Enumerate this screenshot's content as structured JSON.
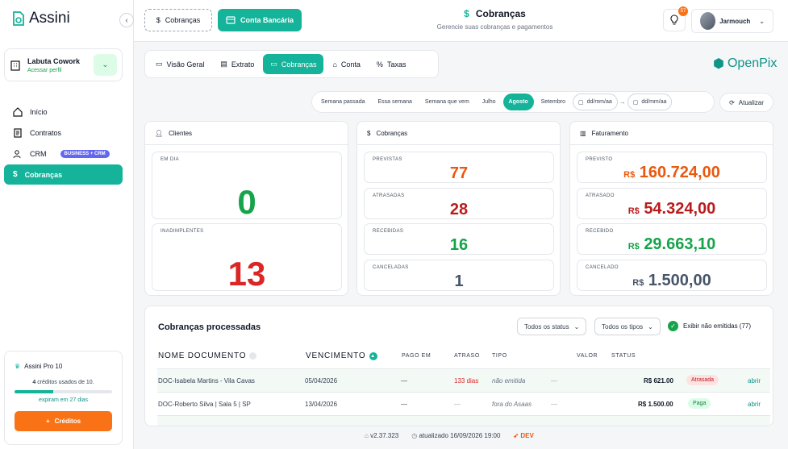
{
  "app": {
    "name": "Assini"
  },
  "org": {
    "name": "Labuta Cowork",
    "link": "Acessar perfil"
  },
  "nav": {
    "items": [
      {
        "label": "Início"
      },
      {
        "label": "Contratos"
      },
      {
        "label": "CRM",
        "badge": "BUSINESS + CRM"
      },
      {
        "label": "Cobranças"
      }
    ]
  },
  "plan": {
    "title": "Assini Pro 10",
    "used": "4",
    "usage_text": "créditos usados de 10.",
    "expires": "expiram em 27 dias",
    "button": "Créditos",
    "progress": 0.4
  },
  "topbar": {
    "btn_cobrancas": "Cobranças",
    "btn_conta": "Conta Bancária",
    "title": "Cobranças",
    "subtitle": "Gerencie suas cobranças e pagamentos",
    "notif_count": "57",
    "user": "Jarmouch"
  },
  "tabs": [
    {
      "label": "Visão Geral"
    },
    {
      "label": "Extrato"
    },
    {
      "label": "Cobranças"
    },
    {
      "label": "Conta"
    },
    {
      "label": "Taxas"
    }
  ],
  "brand": {
    "openpix": "OpenPix"
  },
  "filters": {
    "chips": [
      "Semana passada",
      "Essa semana",
      "Semana que vem",
      "Julho",
      "Agosto",
      "Setembro"
    ],
    "active": "Agosto",
    "date_from": "dd/mm/aa",
    "date_to": "dd/mm/aa",
    "refresh": "Atualizar"
  },
  "clientes": {
    "title": "Clientes",
    "em_dia_label": "EM DIA",
    "em_dia": "0",
    "inad_label": "INADIMPLENTES",
    "inad": "13"
  },
  "cobrancas": {
    "title": "Cobranças",
    "previstas_label": "PREVISTAS",
    "previstas": "77",
    "atrasadas_label": "ATRASADAS",
    "atrasadas": "28",
    "recebidas_label": "RECEBIDAS",
    "recebidas": "16",
    "canceladas_label": "CANCELADAS",
    "canceladas": "1"
  },
  "faturamento": {
    "title": "Faturamento",
    "currency": "R$",
    "previsto_label": "PREVISTO",
    "previsto": "160.724,00",
    "atrasado_label": "ATRASADO",
    "atrasado": "54.324,00",
    "recebido_label": "RECEBIDO",
    "recebido": "29.663,10",
    "cancelado_label": "CANCELADO",
    "cancelado": "1.500,00"
  },
  "table": {
    "title": "Cobranças processadas",
    "status_filter": "Todos os status",
    "type_filter": "Todos os tipos",
    "show_label": "Exibir não emitidas (77)",
    "headers": {
      "nome": "NOME DOCUMENTO",
      "venc": "VENCIMENTO",
      "pago": "PAGO EM",
      "atraso": "ATRASO",
      "tipo": "TIPO",
      "valor": "VALOR",
      "status": "STATUS"
    },
    "rows": [
      {
        "nome": "DOC-Isabela Martins - Vila Cavas",
        "venc": "05/04/2026",
        "pago": "—",
        "atraso": "133 dias",
        "tipo": "não emitida",
        "dash": "—",
        "valor": "R$ 621.00",
        "status": "Atrasada",
        "acao": "abrir"
      },
      {
        "nome": "DOC-Roberto Silva | Sala 5 | SP",
        "venc": "13/04/2026",
        "pago": "—",
        "atraso": "—",
        "tipo": "fora do Asaas",
        "dash": "—",
        "valor": "R$ 1.500.00",
        "status": "Paga",
        "acao": "abrir"
      }
    ]
  },
  "footer": {
    "version": "v2.37.323",
    "updated": "atualizado 16/09/2026 19:00",
    "env": "DEV"
  }
}
